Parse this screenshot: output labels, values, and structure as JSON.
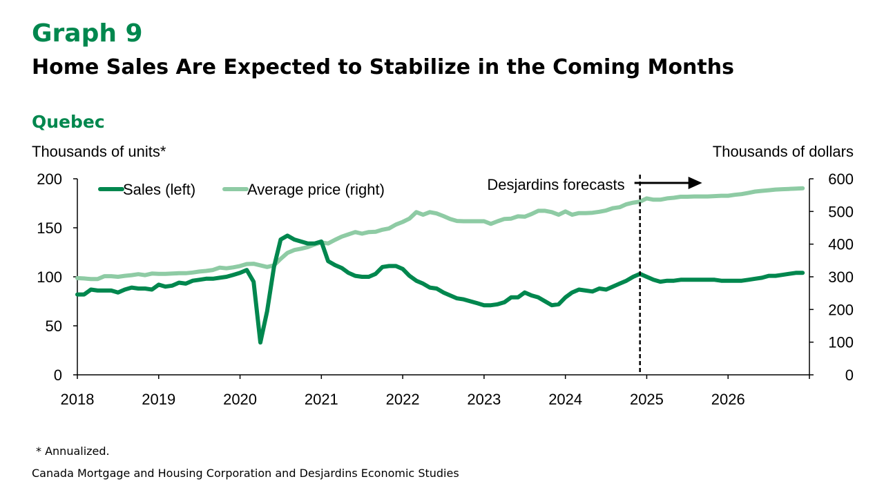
{
  "header": {
    "graph_number": "Graph 9",
    "title": "Home Sales Are Expected to Stabilize in the Coming Months",
    "subtitle": "Quebec"
  },
  "footer": {
    "note": "* Annualized.",
    "source": "Canada Mortgage and Housing Corporation and Desjardins Economic Studies"
  },
  "colors": {
    "sales": "#00874E",
    "price": "#8ECBA4",
    "title_green": "#00874E"
  },
  "chart_data": {
    "type": "line",
    "ylabel_left": "Thousands of units*",
    "ylabel_right": "Thousands of dollars",
    "ylim_left": [
      0,
      200
    ],
    "ylim_right": [
      0,
      600
    ],
    "yticks_left": [
      0,
      50,
      100,
      150,
      200
    ],
    "yticks_right": [
      0,
      100,
      200,
      300,
      400,
      500,
      600
    ],
    "xlim": [
      2018.0,
      2027.0
    ],
    "xticks": [
      2018,
      2019,
      2020,
      2021,
      2022,
      2023,
      2024,
      2025,
      2026
    ],
    "grid": false,
    "legend_position": "top-left",
    "forecast": {
      "x": 2024.917,
      "label": "Desjardins forecasts"
    },
    "series": [
      {
        "name": "Sales (left)",
        "axis": "left",
        "x": [
          2018.0,
          2018.083,
          2018.167,
          2018.25,
          2018.333,
          2018.417,
          2018.5,
          2018.583,
          2018.667,
          2018.75,
          2018.833,
          2018.917,
          2019.0,
          2019.083,
          2019.167,
          2019.25,
          2019.333,
          2019.417,
          2019.5,
          2019.583,
          2019.667,
          2019.75,
          2019.833,
          2019.917,
          2020.0,
          2020.083,
          2020.167,
          2020.25,
          2020.333,
          2020.417,
          2020.5,
          2020.583,
          2020.667,
          2020.75,
          2020.833,
          2020.917,
          2021.0,
          2021.083,
          2021.167,
          2021.25,
          2021.333,
          2021.417,
          2021.5,
          2021.583,
          2021.667,
          2021.75,
          2021.833,
          2021.917,
          2022.0,
          2022.083,
          2022.167,
          2022.25,
          2022.333,
          2022.417,
          2022.5,
          2022.583,
          2022.667,
          2022.75,
          2022.833,
          2022.917,
          2023.0,
          2023.083,
          2023.167,
          2023.25,
          2023.333,
          2023.417,
          2023.5,
          2023.583,
          2023.667,
          2023.75,
          2023.833,
          2023.917,
          2024.0,
          2024.083,
          2024.167,
          2024.25,
          2024.333,
          2024.417,
          2024.5,
          2024.583,
          2024.667,
          2024.75,
          2024.833,
          2024.917,
          2025.0,
          2025.083,
          2025.167,
          2025.25,
          2025.333,
          2025.417,
          2025.5,
          2025.583,
          2025.667,
          2025.75,
          2025.833,
          2025.917,
          2026.0,
          2026.083,
          2026.167,
          2026.25,
          2026.333,
          2026.417,
          2026.5,
          2026.583,
          2026.667,
          2026.75,
          2026.833,
          2026.917
        ],
        "values": [
          82,
          82,
          87,
          86,
          86,
          86,
          84,
          87,
          89,
          88,
          88,
          87,
          92,
          90,
          91,
          94,
          93,
          96,
          97,
          98,
          98,
          99,
          100,
          102,
          104,
          107,
          95,
          33,
          65,
          110,
          138,
          142,
          138,
          136,
          134,
          134,
          136,
          116,
          112,
          109,
          104,
          101,
          100,
          100,
          103,
          110,
          111,
          111,
          108,
          101,
          96,
          93,
          89,
          88,
          84,
          81,
          78,
          77,
          75,
          73,
          71,
          71,
          72,
          74,
          79,
          79,
          84,
          81,
          79,
          75,
          71,
          72,
          79,
          84,
          87,
          86,
          85,
          88,
          87,
          90,
          93,
          96,
          100,
          103,
          100,
          97,
          95,
          96,
          96,
          97,
          97,
          97,
          97,
          97,
          97,
          96,
          96,
          96,
          96,
          97,
          98,
          99,
          101,
          101,
          102,
          103,
          104,
          104
        ]
      },
      {
        "name": "Average price (right)",
        "axis": "right",
        "x": [
          2018.0,
          2018.083,
          2018.167,
          2018.25,
          2018.333,
          2018.417,
          2018.5,
          2018.583,
          2018.667,
          2018.75,
          2018.833,
          2018.917,
          2019.0,
          2019.083,
          2019.167,
          2019.25,
          2019.333,
          2019.417,
          2019.5,
          2019.583,
          2019.667,
          2019.75,
          2019.833,
          2019.917,
          2020.0,
          2020.083,
          2020.167,
          2020.25,
          2020.333,
          2020.417,
          2020.5,
          2020.583,
          2020.667,
          2020.75,
          2020.833,
          2020.917,
          2021.0,
          2021.083,
          2021.167,
          2021.25,
          2021.333,
          2021.417,
          2021.5,
          2021.583,
          2021.667,
          2021.75,
          2021.833,
          2021.917,
          2022.0,
          2022.083,
          2022.167,
          2022.25,
          2022.333,
          2022.417,
          2022.5,
          2022.583,
          2022.667,
          2022.75,
          2022.833,
          2022.917,
          2023.0,
          2023.083,
          2023.167,
          2023.25,
          2023.333,
          2023.417,
          2023.5,
          2023.583,
          2023.667,
          2023.75,
          2023.833,
          2023.917,
          2024.0,
          2024.083,
          2024.167,
          2024.25,
          2024.333,
          2024.417,
          2024.5,
          2024.583,
          2024.667,
          2024.75,
          2024.833,
          2024.917,
          2025.0,
          2025.083,
          2025.167,
          2025.25,
          2025.333,
          2025.417,
          2025.5,
          2025.583,
          2025.667,
          2025.75,
          2025.833,
          2025.917,
          2026.0,
          2026.083,
          2026.167,
          2026.25,
          2026.333,
          2026.417,
          2026.5,
          2026.583,
          2026.667,
          2026.75,
          2026.833,
          2026.917
        ],
        "values": [
          296,
          295,
          293,
          293,
          302,
          302,
          300,
          303,
          305,
          308,
          305,
          310,
          309,
          309,
          310,
          311,
          311,
          313,
          316,
          318,
          321,
          328,
          326,
          329,
          333,
          339,
          340,
          335,
          330,
          335,
          355,
          373,
          382,
          386,
          391,
          399,
          405,
          402,
          413,
          423,
          430,
          437,
          432,
          437,
          438,
          444,
          448,
          460,
          468,
          478,
          498,
          490,
          498,
          494,
          486,
          477,
          471,
          470,
          470,
          470,
          470,
          462,
          470,
          477,
          478,
          485,
          484,
          492,
          502,
          502,
          498,
          490,
          500,
          490,
          495,
          495,
          496,
          499,
          503,
          510,
          513,
          522,
          527,
          530,
          540,
          536,
          536,
          540,
          542,
          545,
          545,
          546,
          546,
          546,
          547,
          548,
          548,
          551,
          553,
          557,
          561,
          563,
          565,
          567,
          568,
          569,
          570,
          571
        ]
      }
    ]
  }
}
